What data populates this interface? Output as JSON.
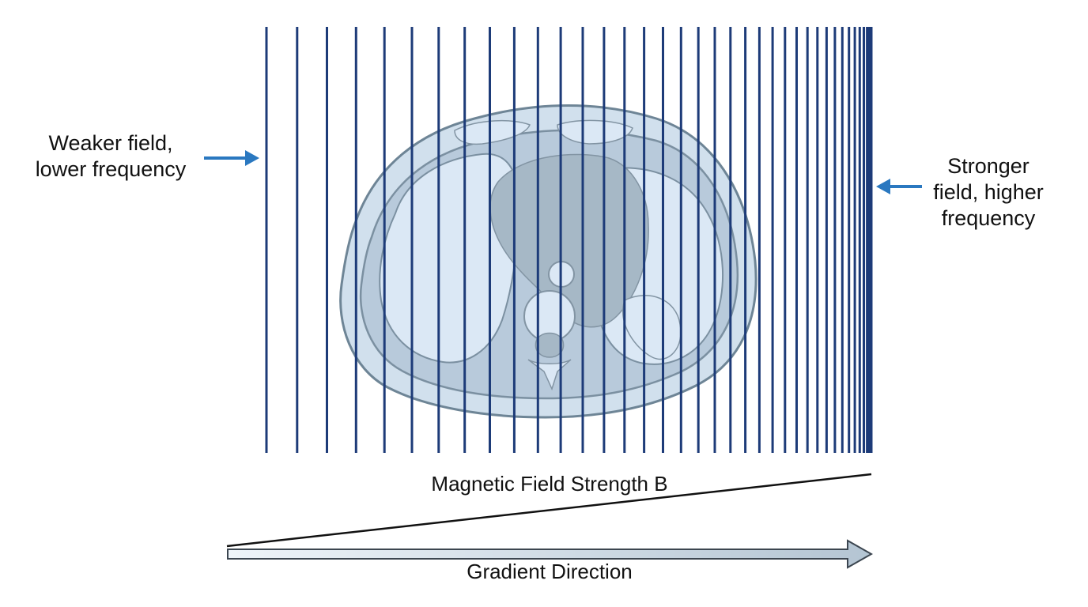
{
  "labels": {
    "left": [
      "Weaker field,",
      "lower frequency"
    ],
    "right": [
      "Stronger",
      "field, higher",
      "frequency"
    ],
    "field_strength": "Magnetic Field Strength B",
    "gradient": "Gradient Direction"
  },
  "field_lines": {
    "count": 39,
    "color": "#1d3b78"
  },
  "colors": {
    "arrow": "#2a78c0",
    "body_fill": "#c9daea",
    "body_outline": "#6e8596",
    "organ_fill": "#a6b8c6",
    "lung_fill": "#dbe8f5",
    "gradient_arrow_fill": "#dde8f1",
    "gradient_arrow_stroke": "#3c4650",
    "ramp_line": "#111111"
  }
}
